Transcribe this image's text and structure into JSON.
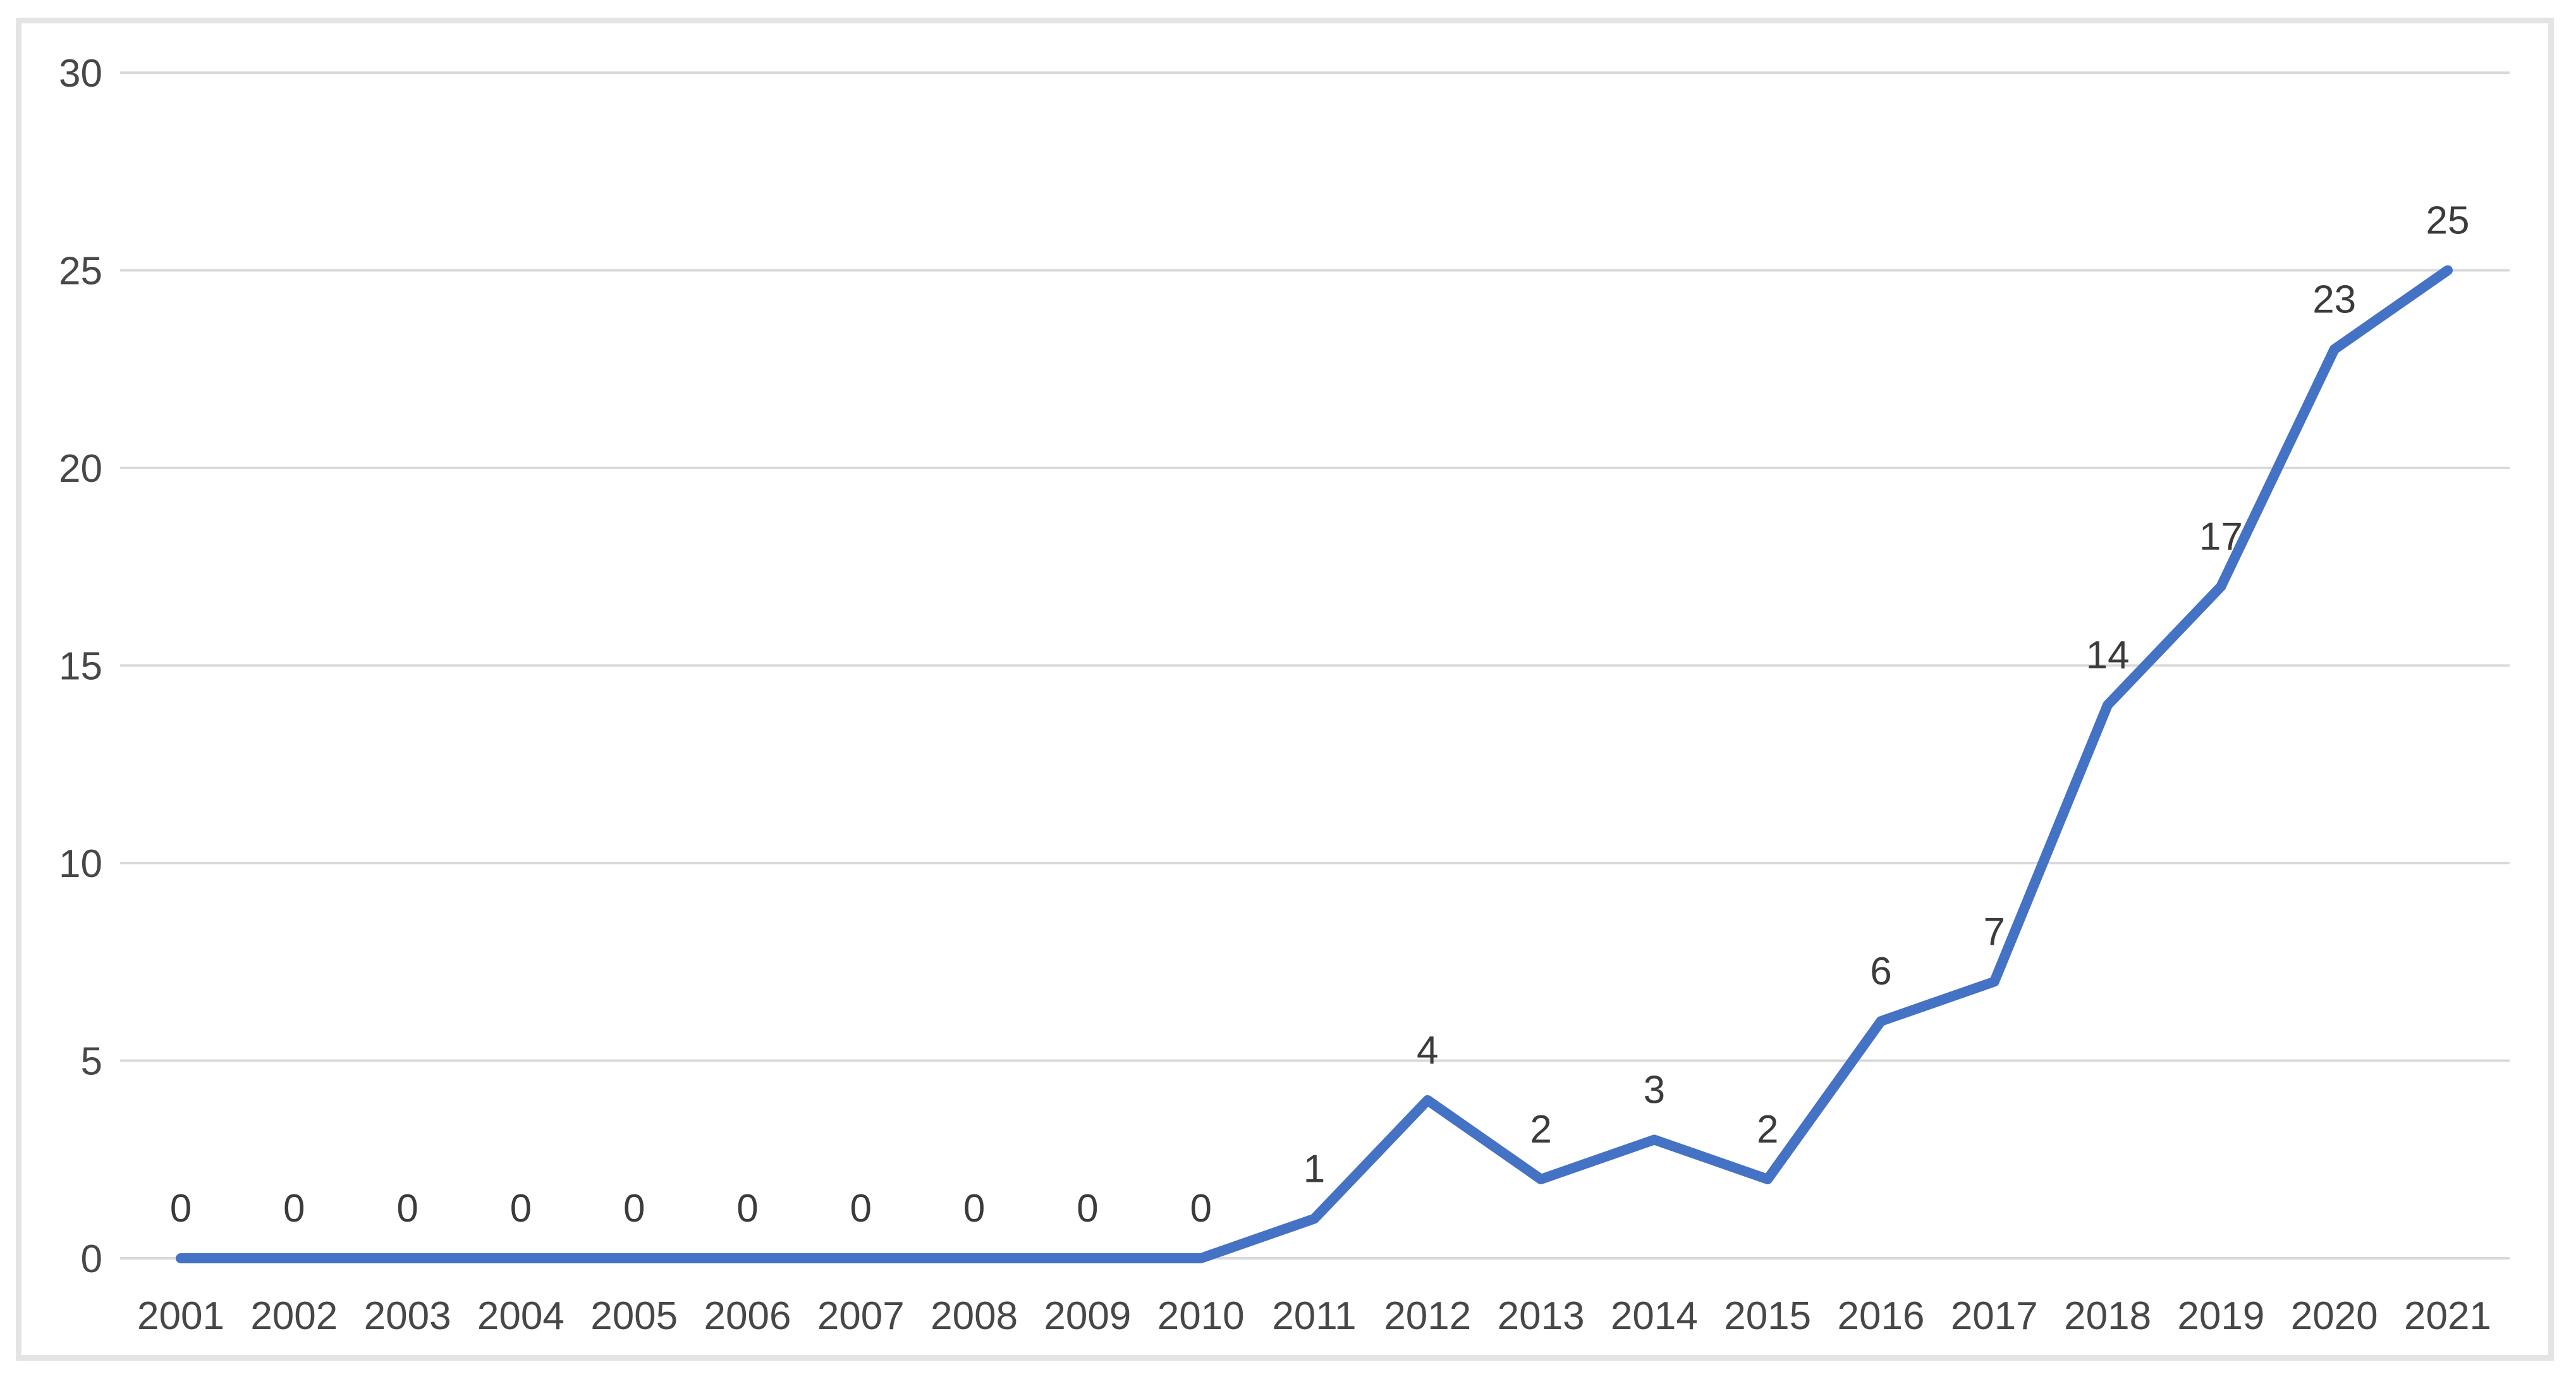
{
  "chart_data": {
    "type": "line",
    "title": "",
    "categories": [
      "2001",
      "2002",
      "2003",
      "2004",
      "2005",
      "2006",
      "2007",
      "2008",
      "2009",
      "2010",
      "2011",
      "2012",
      "2013",
      "2014",
      "2015",
      "2016",
      "2017",
      "2018",
      "2019",
      "2020",
      "2021"
    ],
    "series": [
      {
        "name": "count",
        "values": [
          0,
          0,
          0,
          0,
          0,
          0,
          0,
          0,
          0,
          0,
          1,
          4,
          2,
          3,
          2,
          6,
          7,
          14,
          17,
          23,
          25
        ]
      }
    ],
    "data_labels": [
      0,
      0,
      0,
      0,
      0,
      0,
      0,
      0,
      0,
      0,
      1,
      4,
      2,
      3,
      2,
      6,
      7,
      14,
      17,
      23,
      25
    ],
    "xlabel": "",
    "ylabel": "",
    "ylim": [
      0,
      30
    ],
    "yticks": [
      0,
      5,
      10,
      15,
      20,
      25,
      30
    ],
    "grid": true,
    "legend": "none",
    "colors": {
      "line": "#4472C4",
      "gridline": "#d9d9d9",
      "axis_label": "#474747",
      "data_label": "#3b3b3b",
      "frame_border": "#e4e4e4",
      "background": "#ffffff"
    }
  }
}
